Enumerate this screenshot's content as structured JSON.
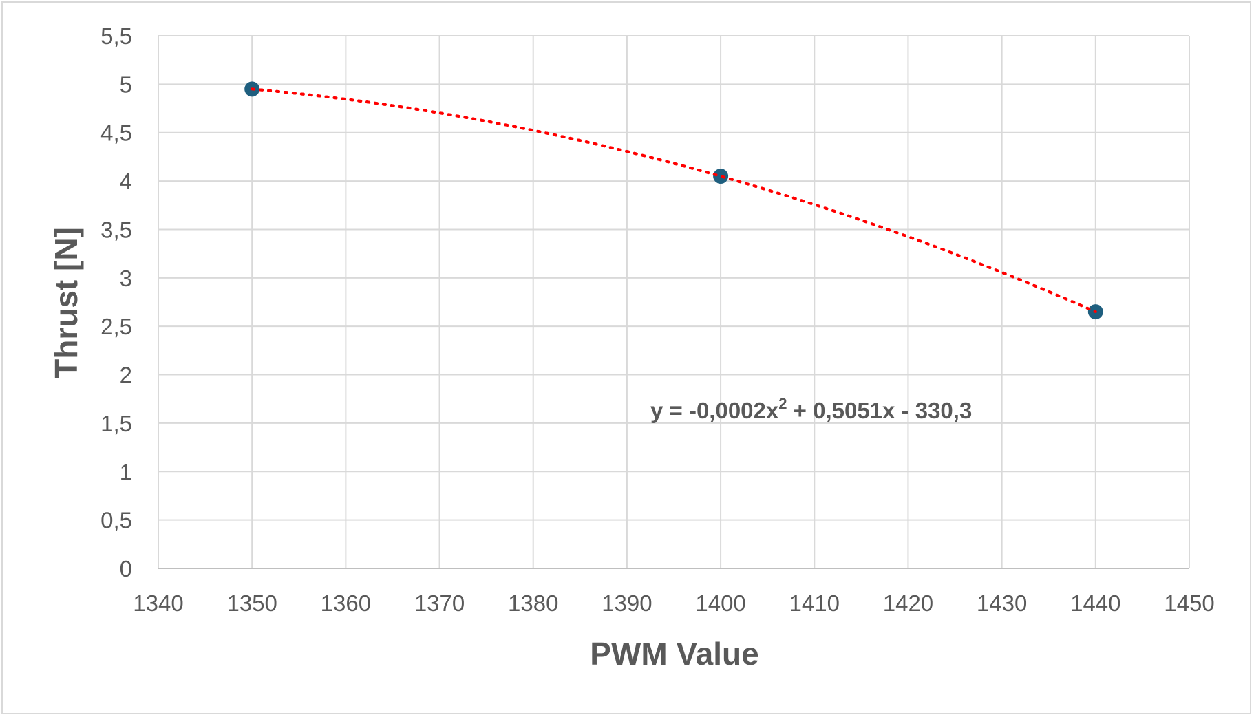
{
  "chart_data": {
    "type": "scatter",
    "xlabel": "PWM Value",
    "ylabel": "Thrust [N]",
    "xlim": [
      1340,
      1450
    ],
    "ylim": [
      0,
      5.5
    ],
    "x_ticks": [
      "1340",
      "1350",
      "1360",
      "1370",
      "1380",
      "1390",
      "1400",
      "1410",
      "1420",
      "1430",
      "1440",
      "1450"
    ],
    "y_ticks": [
      "0",
      "0,5",
      "1",
      "1,5",
      "2",
      "2,5",
      "3",
      "3,5",
      "4",
      "4,5",
      "5",
      "5,5"
    ],
    "grid": true,
    "series": [
      {
        "points": [
          {
            "x": 1350,
            "y": 4.95
          },
          {
            "x": 1400,
            "y": 4.05
          },
          {
            "x": 1440,
            "y": 2.65
          }
        ],
        "marker_color": "#1f5f7f"
      }
    ],
    "trendline": {
      "type": "polynomial",
      "order": 2,
      "style": "dotted",
      "color": "#ff0000",
      "equation_text": {
        "prefix": "y = -0,0002x",
        "superscript": "2",
        "suffix": " + 0,5051x - 330,3"
      }
    }
  }
}
